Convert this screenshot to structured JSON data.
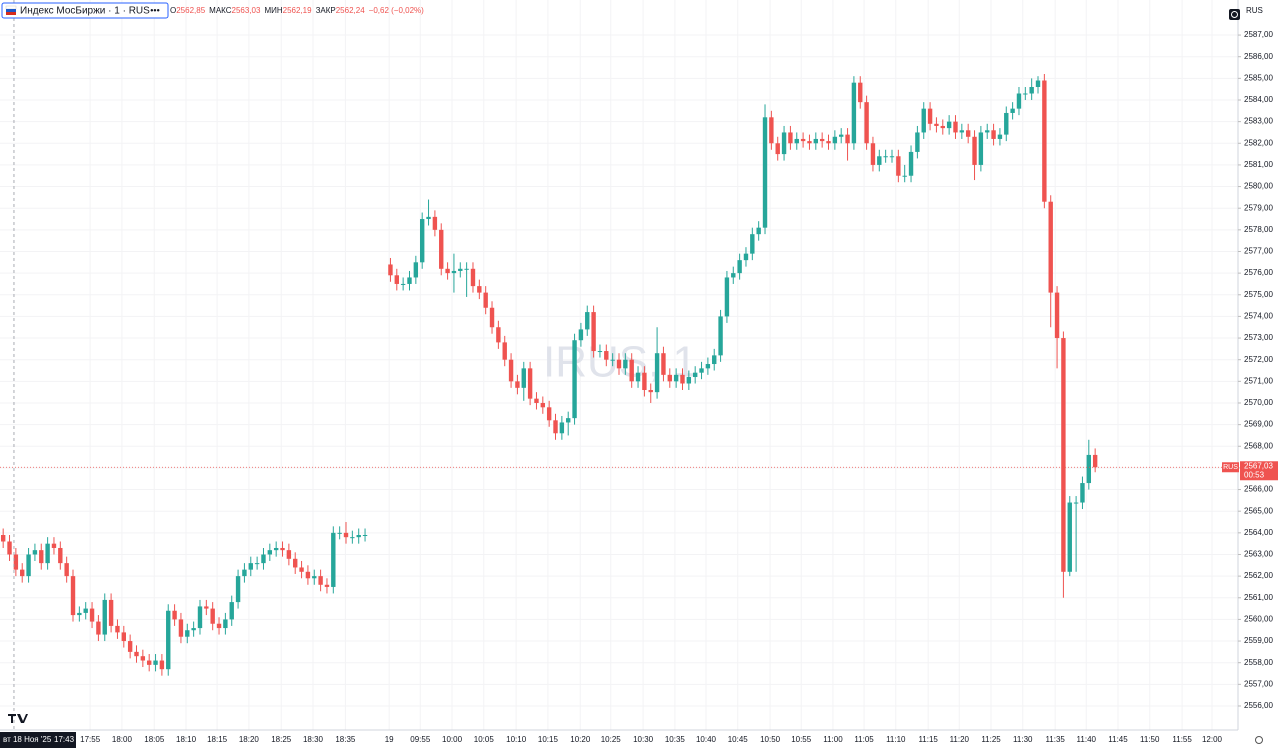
{
  "header": {
    "symbol": "Индекс МосБиржи · 1 · RUS",
    "more": "•••",
    "ohlc": [
      {
        "label": "О",
        "value": "2562,85"
      },
      {
        "label": "МАКС",
        "value": "2563,03"
      },
      {
        "label": "МИН",
        "value": "2562,19"
      },
      {
        "label": "ЗАКР",
        "value": "2562,24"
      }
    ],
    "change": "−0,62 (−0,02%)"
  },
  "chart_data": {
    "type": "candlestick",
    "watermark": "IRUS, 1",
    "up_color": "#26a69a",
    "down_color": "#ef5350",
    "grid": true,
    "axis_tag": "RUS",
    "symbol_tag": "RUS",
    "last_price": {
      "value": 2567.03,
      "label": "2567,03"
    },
    "countdown": "00:53",
    "crosshair": {
      "x": 1.7,
      "date": "вт 18 Ноя '25",
      "time": "17:43"
    },
    "xlim": [
      -0.5,
      194.5
    ],
    "ylim": [
      2554.89,
      2588.62
    ],
    "x": [
      0,
      1,
      2,
      3,
      4,
      5,
      6,
      7,
      8,
      9,
      10,
      11,
      12,
      13,
      14,
      15,
      16,
      17,
      18,
      19,
      20,
      21,
      22,
      23,
      24,
      25,
      26,
      27,
      28,
      29,
      30,
      31,
      32,
      33,
      34,
      35,
      36,
      37,
      38,
      39,
      40,
      41,
      42,
      43,
      44,
      45,
      46,
      47,
      48,
      49,
      50,
      51,
      52,
      53,
      54,
      55,
      56,
      57,
      61,
      62,
      63,
      64,
      65,
      66,
      67,
      68,
      69,
      70,
      71,
      72,
      73,
      74,
      75,
      76,
      77,
      78,
      79,
      80,
      81,
      82,
      83,
      84,
      85,
      86,
      87,
      88,
      89,
      90,
      91,
      92,
      93,
      94,
      95,
      96,
      97,
      98,
      99,
      100,
      101,
      102,
      103,
      104,
      105,
      106,
      107,
      108,
      109,
      110,
      111,
      112,
      113,
      114,
      115,
      116,
      117,
      118,
      119,
      120,
      121,
      122,
      123,
      124,
      125,
      126,
      127,
      128,
      129,
      130,
      131,
      132,
      133,
      134,
      135,
      136,
      137,
      138,
      139,
      140,
      141,
      142,
      143,
      144,
      145,
      146,
      147,
      148,
      149,
      150,
      151,
      152,
      153,
      154,
      155,
      156,
      157,
      158,
      159,
      160,
      161,
      162,
      163,
      164,
      165,
      166,
      167,
      168,
      169,
      170,
      171,
      172
    ],
    "open": [
      2563.9,
      2563.6,
      2563.0,
      2562.3,
      2562.0,
      2563.0,
      2563.2,
      2562.6,
      2563.5,
      2563.3,
      2562.6,
      2562.0,
      2560.2,
      2560.3,
      2560.5,
      2559.9,
      2559.3,
      2560.9,
      2559.7,
      2559.4,
      2559.0,
      2558.5,
      2558.3,
      2558.1,
      2557.9,
      2558.1,
      2557.7,
      2560.4,
      2560.0,
      2559.2,
      2559.5,
      2559.6,
      2560.6,
      2560.5,
      2559.8,
      2559.6,
      2560.0,
      2560.8,
      2562.0,
      2562.3,
      2562.6,
      2562.6,
      2563.0,
      2563.2,
      2563.3,
      2563.2,
      2562.8,
      2562.4,
      2562.2,
      2561.9,
      2562.0,
      2561.6,
      2561.5,
      2564.0,
      2564.0,
      2563.8,
      2563.8,
      2563.9,
      2576.4,
      2575.9,
      2575.5,
      2575.5,
      2575.8,
      2576.5,
      2578.5,
      2578.6,
      2578.0,
      2576.2,
      2576.0,
      2576.1,
      2576.2,
      2576.2,
      2575.4,
      2575.1,
      2574.4,
      2573.5,
      2572.8,
      2572.0,
      2571.0,
      2570.7,
      2571.6,
      2570.2,
      2570.0,
      2569.8,
      2569.2,
      2568.6,
      2569.1,
      2569.3,
      2572.9,
      2573.4,
      2574.2,
      2572.4,
      2572.4,
      2572.0,
      2572.0,
      2571.6,
      2572.0,
      2571.0,
      2571.4,
      2570.6,
      2570.5,
      2572.3,
      2571.3,
      2571.0,
      2571.3,
      2570.9,
      2571.2,
      2571.4,
      2571.6,
      2571.8,
      2572.2,
      2574.0,
      2575.8,
      2576.0,
      2576.6,
      2576.9,
      2577.8,
      2578.1,
      2583.2,
      2582.0,
      2581.5,
      2582.5,
      2582.0,
      2582.2,
      2582.1,
      2582.0,
      2582.2,
      2582.1,
      2582.0,
      2582.3,
      2582.4,
      2582.0,
      2584.8,
      2583.9,
      2582.0,
      2581.0,
      2581.4,
      2581.4,
      2581.4,
      2580.5,
      2580.5,
      2581.6,
      2582.5,
      2583.6,
      2582.9,
      2582.8,
      2582.7,
      2583.0,
      2582.5,
      2582.6,
      2582.3,
      2581.0,
      2582.5,
      2582.6,
      2582.2,
      2582.4,
      2583.4,
      2583.6,
      2584.3,
      2584.3,
      2584.6,
      2584.9,
      2579.3,
      2575.1,
      2573.0,
      2562.2,
      2565.4,
      2565.4,
      2566.3,
      2567.6
    ],
    "high": [
      2564.2,
      2563.9,
      2563.3,
      2562.6,
      2563.3,
      2563.5,
      2563.5,
      2563.8,
      2563.8,
      2563.6,
      2562.9,
      2562.3,
      2560.6,
      2560.8,
      2560.8,
      2560.2,
      2561.2,
      2561.2,
      2560.0,
      2559.7,
      2559.3,
      2558.8,
      2558.6,
      2558.4,
      2558.4,
      2558.4,
      2560.7,
      2560.7,
      2560.3,
      2559.8,
      2559.9,
      2560.9,
      2560.9,
      2560.8,
      2560.1,
      2560.3,
      2561.1,
      2562.3,
      2562.6,
      2562.9,
      2562.9,
      2563.3,
      2563.5,
      2563.6,
      2563.6,
      2563.5,
      2563.1,
      2562.7,
      2562.5,
      2562.3,
      2562.3,
      2561.9,
      2564.3,
      2564.3,
      2564.5,
      2564.1,
      2564.2,
      2564.2,
      2576.7,
      2576.2,
      2575.8,
      2576.1,
      2576.8,
      2578.8,
      2579.4,
      2578.9,
      2578.3,
      2576.5,
      2576.9,
      2576.5,
      2576.5,
      2576.5,
      2575.7,
      2575.4,
      2574.7,
      2573.8,
      2573.1,
      2572.3,
      2571.3,
      2571.9,
      2571.9,
      2570.5,
      2570.3,
      2570.1,
      2569.5,
      2569.4,
      2569.6,
      2573.2,
      2573.7,
      2574.5,
      2574.5,
      2572.7,
      2572.7,
      2572.3,
      2572.3,
      2572.3,
      2572.3,
      2571.7,
      2571.7,
      2570.9,
      2573.5,
      2572.6,
      2571.6,
      2571.6,
      2571.6,
      2571.5,
      2571.7,
      2571.9,
      2572.1,
      2572.5,
      2574.3,
      2576.1,
      2576.3,
      2576.9,
      2577.2,
      2578.1,
      2578.4,
      2583.8,
      2583.5,
      2582.3,
      2582.8,
      2582.8,
      2582.5,
      2582.5,
      2582.4,
      2582.5,
      2582.5,
      2582.4,
      2582.6,
      2582.7,
      2582.7,
      2585.1,
      2585.1,
      2584.2,
      2582.3,
      2581.7,
      2581.7,
      2581.7,
      2581.7,
      2581.0,
      2581.9,
      2582.8,
      2583.9,
      2583.9,
      2583.2,
      2583.1,
      2583.3,
      2583.3,
      2582.9,
      2582.9,
      2582.6,
      2582.8,
      2582.9,
      2582.9,
      2582.7,
      2583.7,
      2583.9,
      2584.6,
      2584.6,
      2585.0,
      2585.1,
      2585.2,
      2579.6,
      2575.4,
      2573.3,
      2565.7,
      2565.7,
      2566.6,
      2568.3,
      2567.9
    ],
    "low": [
      2563.3,
      2562.7,
      2562.0,
      2561.7,
      2561.7,
      2562.7,
      2562.3,
      2562.3,
      2563.0,
      2562.3,
      2561.7,
      2559.9,
      2559.9,
      2560.0,
      2559.6,
      2559.0,
      2559.0,
      2559.4,
      2559.1,
      2558.7,
      2558.2,
      2558.0,
      2557.8,
      2557.6,
      2557.6,
      2557.4,
      2557.4,
      2559.7,
      2558.9,
      2558.9,
      2559.2,
      2559.3,
      2560.2,
      2559.5,
      2559.3,
      2559.3,
      2559.7,
      2560.5,
      2561.7,
      2562.0,
      2562.3,
      2562.3,
      2562.7,
      2562.9,
      2562.9,
      2562.5,
      2562.1,
      2561.9,
      2561.6,
      2561.6,
      2561.3,
      2561.2,
      2561.2,
      2563.7,
      2563.5,
      2563.5,
      2563.5,
      2563.6,
      2575.6,
      2575.2,
      2575.2,
      2575.2,
      2575.5,
      2576.2,
      2578.2,
      2577.7,
      2575.9,
      2575.7,
      2575.1,
      2575.8,
      2574.9,
      2575.1,
      2574.8,
      2574.1,
      2573.2,
      2572.5,
      2571.7,
      2570.7,
      2570.4,
      2570.1,
      2569.9,
      2569.7,
      2569.5,
      2568.9,
      2568.3,
      2568.3,
      2568.5,
      2569.0,
      2572.6,
      2573.1,
      2572.1,
      2572.1,
      2571.7,
      2571.7,
      2571.3,
      2571.3,
      2570.7,
      2570.7,
      2570.3,
      2570.0,
      2570.2,
      2571.0,
      2570.7,
      2570.7,
      2570.6,
      2570.6,
      2570.9,
      2571.1,
      2571.3,
      2571.5,
      2571.9,
      2573.7,
      2575.5,
      2575.7,
      2576.3,
      2576.6,
      2577.5,
      2577.8,
      2581.7,
      2581.2,
      2581.2,
      2581.7,
      2581.7,
      2581.8,
      2581.7,
      2581.7,
      2581.8,
      2581.7,
      2581.7,
      2582.0,
      2581.2,
      2581.7,
      2583.6,
      2581.7,
      2580.7,
      2580.7,
      2581.1,
      2581.1,
      2580.2,
      2580.2,
      2580.2,
      2581.3,
      2582.2,
      2582.6,
      2582.5,
      2582.4,
      2582.4,
      2582.2,
      2582.2,
      2582.0,
      2580.3,
      2580.7,
      2582.2,
      2581.9,
      2581.9,
      2582.1,
      2583.1,
      2583.3,
      2584.0,
      2584.0,
      2584.3,
      2579.0,
      2573.5,
      2571.6,
      2561.0,
      2562.0,
      2562.2,
      2565.1,
      2566.0,
      2566.8
    ],
    "close": [
      2563.6,
      2563.0,
      2562.3,
      2562.0,
      2563.0,
      2563.2,
      2562.6,
      2563.5,
      2563.3,
      2562.6,
      2562.0,
      2560.2,
      2560.3,
      2560.5,
      2559.9,
      2559.3,
      2560.9,
      2559.7,
      2559.4,
      2559.0,
      2558.5,
      2558.3,
      2558.1,
      2557.9,
      2558.1,
      2557.7,
      2560.4,
      2560.0,
      2559.2,
      2559.5,
      2559.6,
      2560.6,
      2560.5,
      2559.8,
      2559.6,
      2560.0,
      2560.8,
      2562.0,
      2562.3,
      2562.6,
      2562.6,
      2563.0,
      2563.2,
      2563.3,
      2563.2,
      2562.8,
      2562.4,
      2562.2,
      2561.9,
      2562.0,
      2561.6,
      2561.5,
      2564.0,
      2564.0,
      2563.8,
      2563.8,
      2563.9,
      2563.9,
      2575.9,
      2575.5,
      2575.5,
      2575.8,
      2576.5,
      2578.5,
      2578.6,
      2578.0,
      2576.2,
      2576.0,
      2576.1,
      2576.2,
      2576.2,
      2575.4,
      2575.1,
      2574.4,
      2573.5,
      2572.8,
      2572.0,
      2571.0,
      2570.7,
      2571.6,
      2570.2,
      2570.0,
      2569.8,
      2569.2,
      2568.6,
      2569.1,
      2569.3,
      2572.9,
      2573.4,
      2574.2,
      2572.4,
      2572.4,
      2572.0,
      2572.0,
      2571.6,
      2572.0,
      2571.0,
      2571.4,
      2570.6,
      2570.5,
      2572.3,
      2571.3,
      2571.0,
      2571.3,
      2570.9,
      2571.2,
      2571.4,
      2571.6,
      2571.8,
      2572.2,
      2574.0,
      2575.8,
      2576.0,
      2576.6,
      2576.9,
      2577.8,
      2578.1,
      2583.2,
      2582.0,
      2581.5,
      2582.5,
      2582.0,
      2582.2,
      2582.1,
      2582.0,
      2582.2,
      2582.1,
      2582.0,
      2582.3,
      2582.4,
      2582.0,
      2584.8,
      2583.9,
      2582.0,
      2581.0,
      2581.4,
      2581.4,
      2581.4,
      2580.5,
      2580.5,
      2581.6,
      2582.5,
      2583.6,
      2582.9,
      2582.8,
      2582.7,
      2583.0,
      2582.5,
      2582.6,
      2582.3,
      2581.0,
      2582.5,
      2582.6,
      2582.2,
      2582.4,
      2583.4,
      2583.6,
      2584.3,
      2584.3,
      2584.6,
      2584.9,
      2579.3,
      2575.1,
      2573.0,
      2562.2,
      2565.4,
      2565.4,
      2566.3,
      2567.6,
      2567.03
    ],
    "xticks": [
      {
        "value": 13.7,
        "label": "17:55"
      },
      {
        "value": 18.7,
        "label": "18:00"
      },
      {
        "value": 23.8,
        "label": "18:05"
      },
      {
        "value": 28.8,
        "label": "18:10"
      },
      {
        "value": 33.7,
        "label": "18:15"
      },
      {
        "value": 38.7,
        "label": "18:20"
      },
      {
        "value": 43.8,
        "label": "18:25"
      },
      {
        "value": 48.8,
        "label": "18:30"
      },
      {
        "value": 53.9,
        "label": "18:35"
      },
      {
        "value": 60.8,
        "label": "19"
      },
      {
        "value": 65.7,
        "label": "09:55"
      },
      {
        "value": 70.7,
        "label": "10:00"
      },
      {
        "value": 75.7,
        "label": "10:05"
      },
      {
        "value": 80.8,
        "label": "10:10"
      },
      {
        "value": 85.8,
        "label": "10:15"
      },
      {
        "value": 90.9,
        "label": "10:20"
      },
      {
        "value": 95.7,
        "label": "10:25"
      },
      {
        "value": 100.8,
        "label": "10:30"
      },
      {
        "value": 105.8,
        "label": "10:35"
      },
      {
        "value": 110.7,
        "label": "10:40"
      },
      {
        "value": 115.7,
        "label": "10:45"
      },
      {
        "value": 120.8,
        "label": "10:50"
      },
      {
        "value": 125.7,
        "label": "10:55"
      },
      {
        "value": 130.7,
        "label": "11:00"
      },
      {
        "value": 135.6,
        "label": "11:05"
      },
      {
        "value": 140.6,
        "label": "11:10"
      },
      {
        "value": 145.7,
        "label": "11:15"
      },
      {
        "value": 150.6,
        "label": "11:20"
      },
      {
        "value": 155.6,
        "label": "11:25"
      },
      {
        "value": 160.6,
        "label": "11:30"
      },
      {
        "value": 165.7,
        "label": "11:35"
      },
      {
        "value": 170.6,
        "label": "11:40"
      },
      {
        "value": 175.6,
        "label": "11:45"
      },
      {
        "value": 180.6,
        "label": "11:50"
      },
      {
        "value": 185.7,
        "label": "11:55"
      },
      {
        "value": 190.4,
        "label": "12:00"
      }
    ],
    "yticks": [
      {
        "value": 2556,
        "label": "2556,00"
      },
      {
        "value": 2557,
        "label": "2557,00"
      },
      {
        "value": 2558,
        "label": "2558,00"
      },
      {
        "value": 2559,
        "label": "2559,00"
      },
      {
        "value": 2560,
        "label": "2560,00"
      },
      {
        "value": 2561,
        "label": "2561,00"
      },
      {
        "value": 2562,
        "label": "2562,00"
      },
      {
        "value": 2563,
        "label": "2563,00"
      },
      {
        "value": 2564,
        "label": "2564,00"
      },
      {
        "value": 2565,
        "label": "2565,00"
      },
      {
        "value": 2566,
        "label": "2566,00"
      },
      {
        "value": 2567,
        "label": "2567,00"
      },
      {
        "value": 2568,
        "label": "2568,00"
      },
      {
        "value": 2569,
        "label": "2569,00"
      },
      {
        "value": 2570,
        "label": "2570,00"
      },
      {
        "value": 2571,
        "label": "2571,00"
      },
      {
        "value": 2572,
        "label": "2572,00"
      },
      {
        "value": 2573,
        "label": "2573,00"
      },
      {
        "value": 2574,
        "label": "2574,00"
      },
      {
        "value": 2575,
        "label": "2575,00"
      },
      {
        "value": 2576,
        "label": "2576,00"
      },
      {
        "value": 2577,
        "label": "2577,00"
      },
      {
        "value": 2578,
        "label": "2578,00"
      },
      {
        "value": 2579,
        "label": "2579,00"
      },
      {
        "value": 2580,
        "label": "2580,00"
      },
      {
        "value": 2581,
        "label": "2581,00"
      },
      {
        "value": 2582,
        "label": "2582,00"
      },
      {
        "value": 2583,
        "label": "2583,00"
      },
      {
        "value": 2584,
        "label": "2584,00"
      },
      {
        "value": 2585,
        "label": "2585,00"
      },
      {
        "value": 2586,
        "label": "2586,00"
      },
      {
        "value": 2587,
        "label": "2587,00"
      }
    ]
  }
}
